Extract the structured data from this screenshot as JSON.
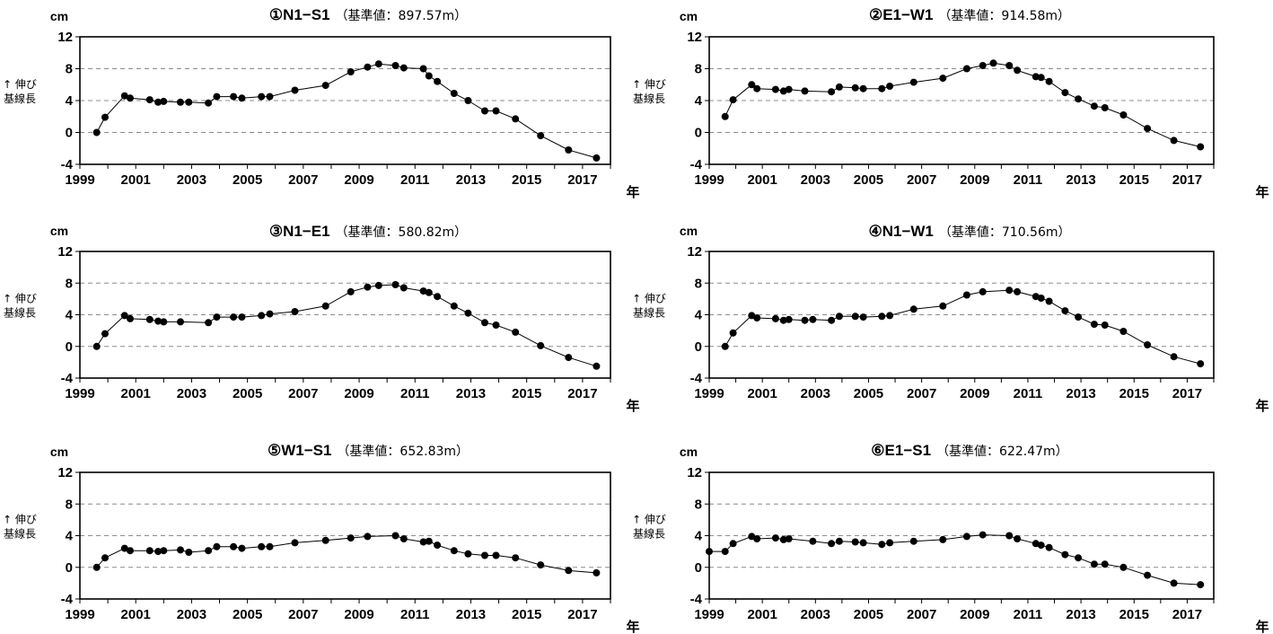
{
  "chart_data": [
    {
      "type": "line",
      "title": "①N1−S1",
      "subtitle": "（基準値：897.57m）",
      "yunit": "cm",
      "ylabel": [
        "↑ 伸び",
        "基線長"
      ],
      "xunit": "年",
      "xticks": [
        "1999",
        "2001",
        "2003",
        "2005",
        "2007",
        "2009",
        "2011",
        "2013",
        "2015",
        "2017"
      ],
      "yticks": [
        "12",
        "8",
        "4",
        "0",
        "-4"
      ],
      "xlim": [
        1999,
        2018
      ],
      "ylim": [
        -4,
        12
      ],
      "grid": "dashed-horizontal",
      "x": [
        1999.6,
        1999.9,
        2000.6,
        2000.8,
        2001.5,
        2001.8,
        2002.0,
        2002.6,
        2002.9,
        2003.6,
        2003.9,
        2004.5,
        2004.8,
        2005.5,
        2005.8,
        2006.7,
        2007.8,
        2008.7,
        2009.3,
        2009.7,
        2010.3,
        2010.6,
        2011.3,
        2011.5,
        2011.8,
        2012.4,
        2012.9,
        2013.5,
        2013.9,
        2014.6,
        2015.5,
        2016.5,
        2017.5
      ],
      "y": [
        0.0,
        1.9,
        4.6,
        4.3,
        4.1,
        3.8,
        3.9,
        3.8,
        3.8,
        3.7,
        4.5,
        4.5,
        4.3,
        4.5,
        4.5,
        5.3,
        5.9,
        7.6,
        8.2,
        8.6,
        8.4,
        8.1,
        8.0,
        7.1,
        6.4,
        4.9,
        4.0,
        2.7,
        2.7,
        1.7,
        -0.4,
        -2.2,
        -3.2
      ]
    },
    {
      "type": "line",
      "title": "②E1−W1",
      "subtitle": "（基準値：914.58m）",
      "yunit": "cm",
      "ylabel": [
        "↑ 伸び",
        "基線長"
      ],
      "xunit": "年",
      "xticks": [
        "1999",
        "2001",
        "2003",
        "2005",
        "2007",
        "2009",
        "2011",
        "2013",
        "2015",
        "2017"
      ],
      "yticks": [
        "12",
        "8",
        "4",
        "0",
        "-4"
      ],
      "xlim": [
        1999,
        2018
      ],
      "ylim": [
        -4,
        12
      ],
      "grid": "dashed-horizontal",
      "x": [
        1999.6,
        1999.9,
        2000.6,
        2000.8,
        2001.5,
        2001.8,
        2002.0,
        2002.6,
        2003.6,
        2003.9,
        2004.5,
        2004.8,
        2005.5,
        2005.8,
        2006.7,
        2007.8,
        2008.7,
        2009.3,
        2009.7,
        2010.3,
        2010.6,
        2011.3,
        2011.5,
        2011.8,
        2012.4,
        2012.9,
        2013.5,
        2013.9,
        2014.6,
        2015.5,
        2016.5,
        2017.5
      ],
      "y": [
        2.0,
        4.1,
        6.0,
        5.5,
        5.4,
        5.2,
        5.4,
        5.2,
        5.1,
        5.7,
        5.6,
        5.5,
        5.5,
        5.8,
        6.3,
        6.8,
        8.0,
        8.4,
        8.7,
        8.4,
        7.8,
        7.0,
        6.9,
        6.4,
        5.0,
        4.2,
        3.3,
        3.1,
        2.2,
        0.5,
        -1.0,
        -1.8
      ]
    },
    {
      "type": "line",
      "title": "③N1−E1",
      "subtitle": "（基準値：580.82m）",
      "yunit": "cm",
      "ylabel": [
        "↑ 伸び",
        "基線長"
      ],
      "xunit": "年",
      "xticks": [
        "1999",
        "2001",
        "2003",
        "2005",
        "2007",
        "2009",
        "2011",
        "2013",
        "2015",
        "2017"
      ],
      "yticks": [
        "12",
        "8",
        "4",
        "0",
        "-4"
      ],
      "xlim": [
        1999,
        2018
      ],
      "ylim": [
        -4,
        12
      ],
      "grid": "dashed-horizontal",
      "x": [
        1999.6,
        1999.9,
        2000.6,
        2000.8,
        2001.5,
        2001.8,
        2002.0,
        2002.6,
        2003.6,
        2003.9,
        2004.5,
        2004.8,
        2005.5,
        2005.8,
        2006.7,
        2007.8,
        2008.7,
        2009.3,
        2009.7,
        2010.3,
        2010.6,
        2011.3,
        2011.5,
        2011.8,
        2012.4,
        2012.9,
        2013.5,
        2013.9,
        2014.6,
        2015.5,
        2016.5,
        2017.5
      ],
      "y": [
        0.0,
        1.6,
        3.9,
        3.5,
        3.4,
        3.2,
        3.1,
        3.1,
        3.0,
        3.7,
        3.7,
        3.7,
        3.9,
        4.1,
        4.4,
        5.1,
        6.9,
        7.5,
        7.7,
        7.8,
        7.4,
        7.0,
        6.8,
        6.3,
        5.1,
        4.2,
        3.0,
        2.7,
        1.8,
        0.1,
        -1.4,
        -2.5
      ]
    },
    {
      "type": "line",
      "title": "④N1−W1",
      "subtitle": "（基準値：710.56m）",
      "yunit": "cm",
      "ylabel": [
        "↑ 伸び",
        "基線長"
      ],
      "xunit": "年",
      "xticks": [
        "1999",
        "2001",
        "2003",
        "2005",
        "2007",
        "2009",
        "2011",
        "2013",
        "2015",
        "2017"
      ],
      "yticks": [
        "12",
        "8",
        "4",
        "0",
        "-4"
      ],
      "xlim": [
        1999,
        2018
      ],
      "ylim": [
        -4,
        12
      ],
      "grid": "dashed-horizontal",
      "x": [
        1999.6,
        1999.9,
        2000.6,
        2000.8,
        2001.5,
        2001.8,
        2002.0,
        2002.6,
        2002.9,
        2003.6,
        2003.9,
        2004.5,
        2004.8,
        2005.5,
        2005.8,
        2006.7,
        2007.8,
        2008.7,
        2009.3,
        2010.3,
        2010.6,
        2011.3,
        2011.5,
        2011.8,
        2012.4,
        2012.9,
        2013.5,
        2013.9,
        2014.6,
        2015.5,
        2016.5,
        2017.5
      ],
      "y": [
        0.0,
        1.7,
        3.9,
        3.6,
        3.5,
        3.3,
        3.4,
        3.3,
        3.4,
        3.3,
        3.8,
        3.8,
        3.7,
        3.8,
        3.9,
        4.7,
        5.1,
        6.5,
        6.9,
        7.1,
        6.9,
        6.3,
        6.1,
        5.7,
        4.5,
        3.7,
        2.8,
        2.7,
        1.9,
        0.2,
        -1.3,
        -2.2
      ]
    },
    {
      "type": "line",
      "title": "⑤W1−S1",
      "subtitle": "（基準値：652.83m）",
      "yunit": "cm",
      "ylabel": [
        "↑ 伸び",
        "基線長"
      ],
      "xunit": "年",
      "xticks": [
        "1999",
        "2001",
        "2003",
        "2005",
        "2007",
        "2009",
        "2011",
        "2013",
        "2015",
        "2017"
      ],
      "yticks": [
        "12",
        "8",
        "4",
        "0",
        "-4"
      ],
      "xlim": [
        1999,
        2018
      ],
      "ylim": [
        -4,
        12
      ],
      "grid": "dashed-horizontal",
      "x": [
        1999.6,
        1999.9,
        2000.6,
        2000.8,
        2001.5,
        2001.8,
        2002.0,
        2002.6,
        2002.9,
        2003.6,
        2003.9,
        2004.5,
        2004.8,
        2005.5,
        2005.8,
        2006.7,
        2007.8,
        2008.7,
        2009.3,
        2010.3,
        2010.6,
        2011.3,
        2011.5,
        2011.8,
        2012.4,
        2012.9,
        2013.5,
        2013.9,
        2014.6,
        2015.5,
        2016.5,
        2017.5
      ],
      "y": [
        0.0,
        1.2,
        2.4,
        2.1,
        2.1,
        2.0,
        2.1,
        2.2,
        1.9,
        2.1,
        2.6,
        2.6,
        2.4,
        2.6,
        2.6,
        3.1,
        3.4,
        3.7,
        3.9,
        4.0,
        3.6,
        3.2,
        3.3,
        2.8,
        2.1,
        1.7,
        1.5,
        1.5,
        1.2,
        0.3,
        -0.4,
        -0.7
      ]
    },
    {
      "type": "line",
      "title": "⑥E1−S1",
      "subtitle": "（基準値：622.47m）",
      "yunit": "cm",
      "ylabel": [
        "↑ 伸び",
        "基線長"
      ],
      "xunit": "年",
      "xticks": [
        "1999",
        "2001",
        "2003",
        "2005",
        "2007",
        "2009",
        "2011",
        "2013",
        "2015",
        "2017"
      ],
      "yticks": [
        "12",
        "8",
        "4",
        "0",
        "-4"
      ],
      "xlim": [
        1999,
        2018
      ],
      "ylim": [
        -4,
        12
      ],
      "grid": "dashed-horizontal",
      "x": [
        1999.0,
        1999.6,
        1999.9,
        2000.6,
        2000.8,
        2001.5,
        2001.8,
        2002.0,
        2002.9,
        2003.6,
        2003.9,
        2004.5,
        2004.8,
        2005.5,
        2005.8,
        2006.7,
        2007.8,
        2008.7,
        2009.3,
        2010.3,
        2010.6,
        2011.3,
        2011.5,
        2011.8,
        2012.4,
        2012.9,
        2013.5,
        2013.9,
        2014.6,
        2015.5,
        2016.5,
        2017.5
      ],
      "y": [
        2.0,
        2.0,
        3.0,
        3.9,
        3.6,
        3.7,
        3.5,
        3.6,
        3.3,
        3.0,
        3.3,
        3.2,
        3.1,
        2.9,
        3.1,
        3.3,
        3.5,
        3.9,
        4.1,
        4.0,
        3.6,
        3.0,
        2.8,
        2.5,
        1.6,
        1.2,
        0.4,
        0.4,
        0.0,
        -1.0,
        -2.0,
        -2.2
      ]
    }
  ]
}
